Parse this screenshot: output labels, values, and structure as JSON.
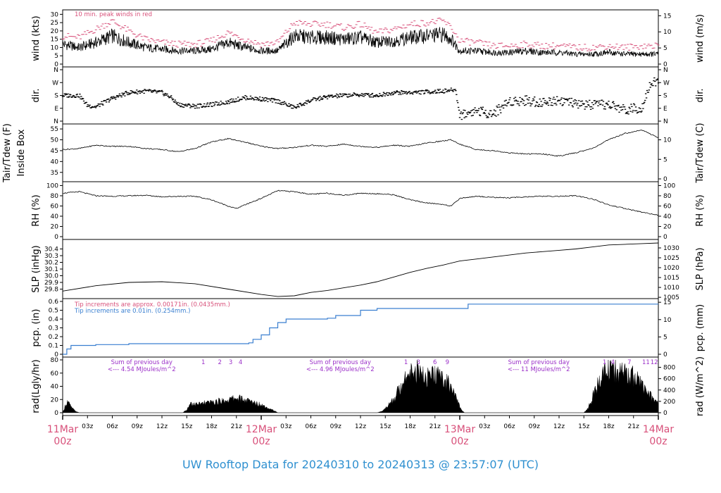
{
  "title": "UW Rooftop Data for 20240310  to  20240313 @ 23:57:07  (UTC)",
  "colors": {
    "peak": "#d8507a",
    "precip": "#3a7fd0",
    "purple": "#9b30c8",
    "day": "#d8507a",
    "title": "#2f90d0",
    "trace": "#000000"
  },
  "x_axis": {
    "range_hours": [
      0,
      72
    ],
    "tick_labels": [
      "03z",
      "06z",
      "09z",
      "12z",
      "15z",
      "18z",
      "21z",
      "03z",
      "06z",
      "09z",
      "12z",
      "15z",
      "18z",
      "21z",
      "03z",
      "06z",
      "09z",
      "12z",
      "15z",
      "18z",
      "21z"
    ],
    "tick_hours": [
      3,
      6,
      9,
      12,
      15,
      18,
      21,
      27,
      30,
      33,
      36,
      39,
      42,
      45,
      51,
      54,
      57,
      60,
      63,
      66,
      69
    ],
    "day_labels": [
      {
        "date": "11Mar",
        "time": "00z",
        "hour": 0
      },
      {
        "date": "12Mar",
        "time": "00z",
        "hour": 24
      },
      {
        "date": "13Mar",
        "time": "00z",
        "hour": 48
      },
      {
        "date": "14Mar",
        "time": "00z",
        "hour": 72
      }
    ]
  },
  "chart_data": [
    {
      "type": "line",
      "panel": "wind",
      "left_label": "wind (kts)",
      "right_label": "wind (m/s)",
      "yticks_left": [
        0,
        5,
        10,
        15,
        20,
        25,
        30
      ],
      "ylim": [
        0,
        31
      ],
      "yticks_right": [
        0,
        5,
        10,
        15
      ],
      "annotation": "10 min. peak winds in red",
      "series": [
        {
          "kind": "mean",
          "x": [
            0,
            2,
            4,
            6,
            8,
            10,
            12,
            14,
            16,
            18,
            20,
            22,
            24,
            26,
            28,
            30,
            32,
            34,
            36,
            38,
            40,
            42,
            44,
            46,
            47,
            48,
            50,
            52,
            54,
            56,
            58,
            60,
            62,
            64,
            66,
            68,
            70,
            72
          ],
          "y": [
            12,
            10,
            13,
            17,
            13,
            10,
            9,
            8,
            8,
            9,
            13,
            10,
            8,
            8,
            17,
            16,
            16,
            15,
            16,
            13,
            14,
            16,
            17,
            18,
            15,
            8,
            8,
            7,
            7,
            8,
            7,
            7,
            6,
            6,
            7,
            6,
            6,
            6
          ]
        },
        {
          "kind": "peak",
          "x": [
            0,
            2,
            4,
            6,
            8,
            10,
            12,
            14,
            16,
            18,
            20,
            22,
            24,
            26,
            28,
            30,
            32,
            34,
            36,
            38,
            40,
            42,
            44,
            46,
            47,
            48,
            50,
            52,
            54,
            56,
            58,
            60,
            62,
            64,
            66,
            68,
            70,
            72
          ],
          "y": [
            17,
            16,
            21,
            26,
            20,
            15,
            13,
            12,
            12,
            14,
            19,
            15,
            12,
            13,
            25,
            24,
            24,
            22,
            24,
            19,
            21,
            24,
            25,
            26,
            22,
            14,
            13,
            11,
            11,
            12,
            11,
            11,
            10,
            10,
            11,
            10,
            11,
            11
          ]
        }
      ]
    },
    {
      "type": "scatter",
      "panel": "dir",
      "left_label": "dir.",
      "right_label": "dir.",
      "ytick_labels": [
        "N",
        "E",
        "S",
        "W",
        "N"
      ],
      "ylim_degrees": [
        0,
        360
      ],
      "x": [
        0,
        2,
        3,
        4,
        6,
        8,
        10,
        12,
        13,
        14,
        16,
        18,
        20,
        22,
        24,
        26,
        28,
        30,
        32,
        34,
        36,
        38,
        40,
        42,
        44,
        46,
        47.5,
        48,
        50,
        52,
        54,
        56,
        58,
        60,
        62,
        64,
        66,
        68,
        70,
        71,
        72
      ],
      "y": [
        180,
        180,
        110,
        100,
        160,
        200,
        210,
        200,
        170,
        115,
        105,
        115,
        135,
        165,
        155,
        140,
        95,
        145,
        170,
        180,
        185,
        180,
        200,
        200,
        205,
        210,
        220,
        40,
        75,
        50,
        140,
        145,
        130,
        150,
        120,
        110,
        115,
        80,
        95,
        260,
        280
      ]
    },
    {
      "type": "line",
      "panel": "temp",
      "left_label": "Tair/Tdew (F)",
      "left_label_2": "Inside Box",
      "right_label": "Tair/Tdew (C)",
      "yticks_left": [
        35,
        40,
        45,
        50,
        55
      ],
      "ylim": [
        32,
        56
      ],
      "yticks_right": [
        0,
        5,
        10
      ],
      "x": [
        0,
        2,
        4,
        6,
        8,
        10,
        12,
        14,
        16,
        18,
        20,
        22,
        24,
        26,
        28,
        30,
        32,
        34,
        36,
        38,
        40,
        42,
        44,
        46,
        47,
        48,
        50,
        52,
        54,
        56,
        58,
        60,
        62,
        64,
        66,
        68,
        70,
        72
      ],
      "y": [
        45.5,
        46,
        47.5,
        47,
        47,
        46,
        45.5,
        44.5,
        46,
        49,
        50.5,
        49,
        47,
        46,
        46.5,
        47.5,
        47,
        48,
        47,
        46.5,
        47.5,
        47,
        48.5,
        49.5,
        50,
        48,
        45.5,
        45,
        44,
        43.5,
        43.5,
        42.5,
        44,
        46,
        50,
        53,
        54.5,
        51
      ]
    },
    {
      "type": "line",
      "panel": "rh",
      "left_label": "RH (%)",
      "right_label": "RH (%)",
      "yticks_left": [
        0,
        20,
        40,
        60,
        80,
        100
      ],
      "ylim": [
        0,
        102
      ],
      "x": [
        0,
        2,
        4,
        6,
        8,
        10,
        12,
        14,
        16,
        18,
        20,
        21,
        22,
        24,
        26,
        28,
        30,
        32,
        34,
        36,
        38,
        40,
        42,
        44,
        46,
        47,
        48,
        50,
        52,
        54,
        56,
        58,
        60,
        62,
        64,
        66,
        68,
        70,
        72
      ],
      "y": [
        85,
        88,
        80,
        79,
        80,
        81,
        78,
        79,
        79,
        72,
        60,
        55,
        62,
        75,
        90,
        88,
        83,
        85,
        81,
        85,
        84,
        82,
        72,
        66,
        63,
        60,
        75,
        79,
        77,
        76,
        78,
        79,
        79,
        80,
        74,
        62,
        55,
        48,
        42
      ]
    },
    {
      "type": "line",
      "panel": "slp",
      "left_label": "SLP (inHg)",
      "right_label": "SLP (hPa)",
      "yticks_left": [
        29.8,
        29.9,
        30.0,
        30.1,
        30.2,
        30.3,
        30.4
      ],
      "ylim": [
        29.7,
        30.5
      ],
      "yticks_right": [
        1005,
        1010,
        1015,
        1020,
        1025,
        1030
      ],
      "x": [
        0,
        4,
        8,
        12,
        16,
        20,
        24,
        26,
        28,
        30,
        32,
        34,
        36,
        38,
        40,
        42,
        44,
        46,
        48,
        50,
        52,
        54,
        56,
        58,
        60,
        62,
        64,
        66,
        68,
        70,
        72
      ],
      "y": [
        29.77,
        29.85,
        29.9,
        29.91,
        29.88,
        29.8,
        29.72,
        29.69,
        29.7,
        29.75,
        29.78,
        29.82,
        29.86,
        29.91,
        29.98,
        30.05,
        30.11,
        30.16,
        30.22,
        30.25,
        30.28,
        30.31,
        30.34,
        30.36,
        30.38,
        30.4,
        30.43,
        30.46,
        30.47,
        30.48,
        30.49
      ]
    },
    {
      "type": "line",
      "panel": "pcp",
      "left_label": "pcp. (in)",
      "right_label": "pcp. (mm)",
      "yticks_left": [
        0,
        0.1,
        0.2,
        0.3,
        0.4,
        0.5,
        0.6
      ],
      "ylim": [
        0,
        0.6
      ],
      "yticks_right": [
        0,
        5,
        10,
        15
      ],
      "note_red": "Tip increments are approx. 0.00171in. (0.0435mm.)",
      "note_blue": "Tip increments are 0.01in. (0.254mm.)",
      "x": [
        0,
        0.5,
        1,
        4,
        8,
        12,
        16,
        18,
        20,
        22,
        22.5,
        23,
        24,
        25,
        26,
        27,
        28,
        30,
        32,
        33,
        34,
        36,
        37,
        38,
        42,
        46,
        48,
        49,
        50,
        55,
        60,
        65,
        70,
        72
      ],
      "y": [
        0,
        0.06,
        0.1,
        0.11,
        0.12,
        0.12,
        0.12,
        0.12,
        0.12,
        0.12,
        0.13,
        0.17,
        0.22,
        0.3,
        0.36,
        0.4,
        0.4,
        0.4,
        0.41,
        0.44,
        0.44,
        0.5,
        0.5,
        0.52,
        0.52,
        0.52,
        0.52,
        0.57,
        0.57,
        0.57,
        0.57,
        0.57,
        0.57,
        0.57
      ]
    },
    {
      "type": "area",
      "panel": "rad",
      "left_label": "rad(Lgly/hr)",
      "right_label": "rad (W/m^2)",
      "yticks_left": [
        0,
        20,
        40,
        60,
        80
      ],
      "ylim": [
        0,
        80
      ],
      "yticks_right": [
        0,
        200,
        400,
        600,
        800
      ],
      "hour_markers": [
        {
          "label": "1",
          "hour": 17
        },
        {
          "label": "2",
          "hour": 19
        },
        {
          "label": "3",
          "hour": 20.3
        },
        {
          "label": "4",
          "hour": 21.5
        },
        {
          "label": "1",
          "hour": 41.5
        },
        {
          "label": "3",
          "hour": 43
        },
        {
          "label": "6",
          "hour": 45
        },
        {
          "label": "9",
          "hour": 46.5
        },
        {
          "label": "1",
          "hour": 65.5
        },
        {
          "label": "4",
          "hour": 66.5
        },
        {
          "label": "7",
          "hour": 68.5
        },
        {
          "label": "11",
          "hour": 70.5
        },
        {
          "label": "12",
          "hour": 71.5
        }
      ],
      "daily_notes": [
        {
          "line1": "Sum of previous day",
          "line2": "<--- 4.54 MJoules/m^2",
          "hour": 7
        },
        {
          "line1": "Sum of previous day",
          "line2": "<--- 4.96 MJoules/m^2",
          "hour": 31
        },
        {
          "line1": "Sum of previous day",
          "line2": "<--- 11 MJoules/m^2",
          "hour": 55
        }
      ],
      "x": [
        0,
        0.3,
        0.6,
        1,
        1.5,
        2,
        14.5,
        15,
        15.5,
        16,
        18,
        20,
        21,
        22,
        23,
        24,
        25,
        26,
        38,
        38.5,
        39,
        40,
        41,
        41.5,
        42,
        43,
        44,
        45,
        46,
        47,
        47.5,
        48,
        48.3,
        48.6,
        63,
        63.5,
        64,
        65,
        66,
        67,
        68,
        69,
        70,
        71,
        72
      ],
      "y": [
        0,
        12,
        20,
        10,
        3,
        0,
        0,
        5,
        18,
        14,
        18,
        22,
        26,
        22,
        18,
        14,
        8,
        0,
        0,
        2,
        8,
        22,
        50,
        65,
        78,
        70,
        60,
        64,
        60,
        45,
        28,
        10,
        3,
        0,
        0,
        8,
        25,
        60,
        80,
        72,
        68,
        62,
        48,
        30,
        14
      ]
    }
  ]
}
